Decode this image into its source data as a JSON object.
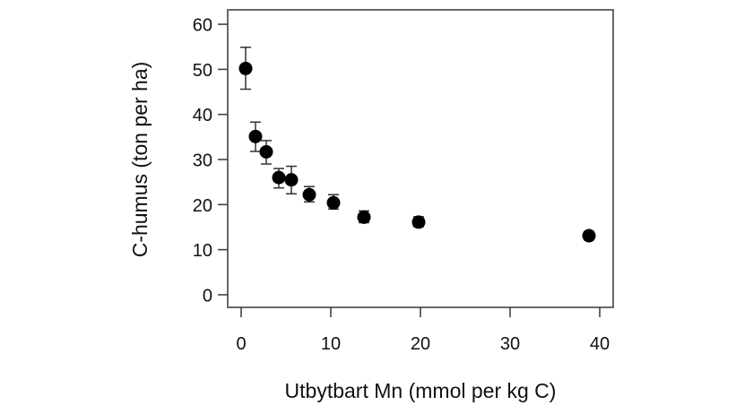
{
  "chart_data": {
    "type": "scatter",
    "title": "",
    "xlabel": "Utbytbart Mn (mmol per kg C)",
    "ylabel": "C-humus (ton per ha)",
    "xlim": [
      -1.5,
      41.5
    ],
    "ylim": [
      -2.8,
      63.2
    ],
    "xticks": [
      0,
      10,
      20,
      30,
      40
    ],
    "yticks": [
      0,
      10,
      20,
      30,
      40,
      50,
      60
    ],
    "grid": false,
    "legend": null,
    "series": [
      {
        "name": "C-humus",
        "marker": "filled-circle",
        "color": "#000000",
        "points": [
          {
            "x": 0.5,
            "y": 50.2,
            "err_low": 45.6,
            "err_high": 54.9
          },
          {
            "x": 1.6,
            "y": 35.1,
            "err_low": 31.8,
            "err_high": 38.3
          },
          {
            "x": 2.8,
            "y": 31.7,
            "err_low": 29.0,
            "err_high": 34.2
          },
          {
            "x": 4.2,
            "y": 26.0,
            "err_low": 23.7,
            "err_high": 28.0
          },
          {
            "x": 5.6,
            "y": 25.5,
            "err_low": 22.4,
            "err_high": 28.5
          },
          {
            "x": 7.6,
            "y": 22.2,
            "err_low": 20.6,
            "err_high": 24.0
          },
          {
            "x": 10.3,
            "y": 20.4,
            "err_low": 19.0,
            "err_high": 22.2
          },
          {
            "x": 13.7,
            "y": 17.2,
            "err_low": 16.0,
            "err_high": 18.6
          },
          {
            "x": 19.8,
            "y": 16.1,
            "err_low": 15.1,
            "err_high": 17.3
          },
          {
            "x": 38.8,
            "y": 13.1,
            "err_low": 12.2,
            "err_high": 14.0
          }
        ]
      }
    ]
  }
}
